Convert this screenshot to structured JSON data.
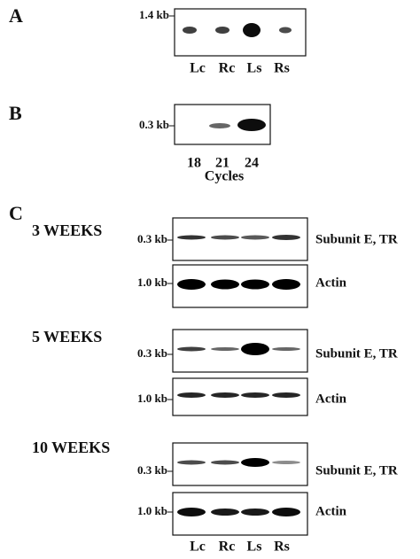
{
  "panels": [
    {
      "label": "A",
      "size_marker": "1.4 kb",
      "lanes": [
        "Lc",
        "Rc",
        "Ls",
        "Rs"
      ]
    },
    {
      "label": "B",
      "size_marker": "0.3 kb",
      "lanes": [
        "18",
        "21",
        "24"
      ],
      "axis_label": "Cycles"
    },
    {
      "label": "C",
      "lanes": [
        "Lc",
        "Rc",
        "Ls",
        "Rs"
      ],
      "groups": [
        {
          "title": "3 WEEKS",
          "blots": [
            {
              "size_marker": "0.3 kb",
              "name": "Subunit E, TR"
            },
            {
              "size_marker": "1.0 kb",
              "name": "Actin"
            }
          ]
        },
        {
          "title": "5 WEEKS",
          "blots": [
            {
              "size_marker": "0.3 kb",
              "name": "Subunit E, TR"
            },
            {
              "size_marker": "1.0 kb",
              "name": "Actin"
            }
          ]
        },
        {
          "title": "10 WEEKS",
          "blots": [
            {
              "size_marker": "0.3 kb",
              "name": "Subunit E, TR"
            },
            {
              "size_marker": "1.0 kb",
              "name": "Actin"
            }
          ]
        }
      ]
    }
  ]
}
